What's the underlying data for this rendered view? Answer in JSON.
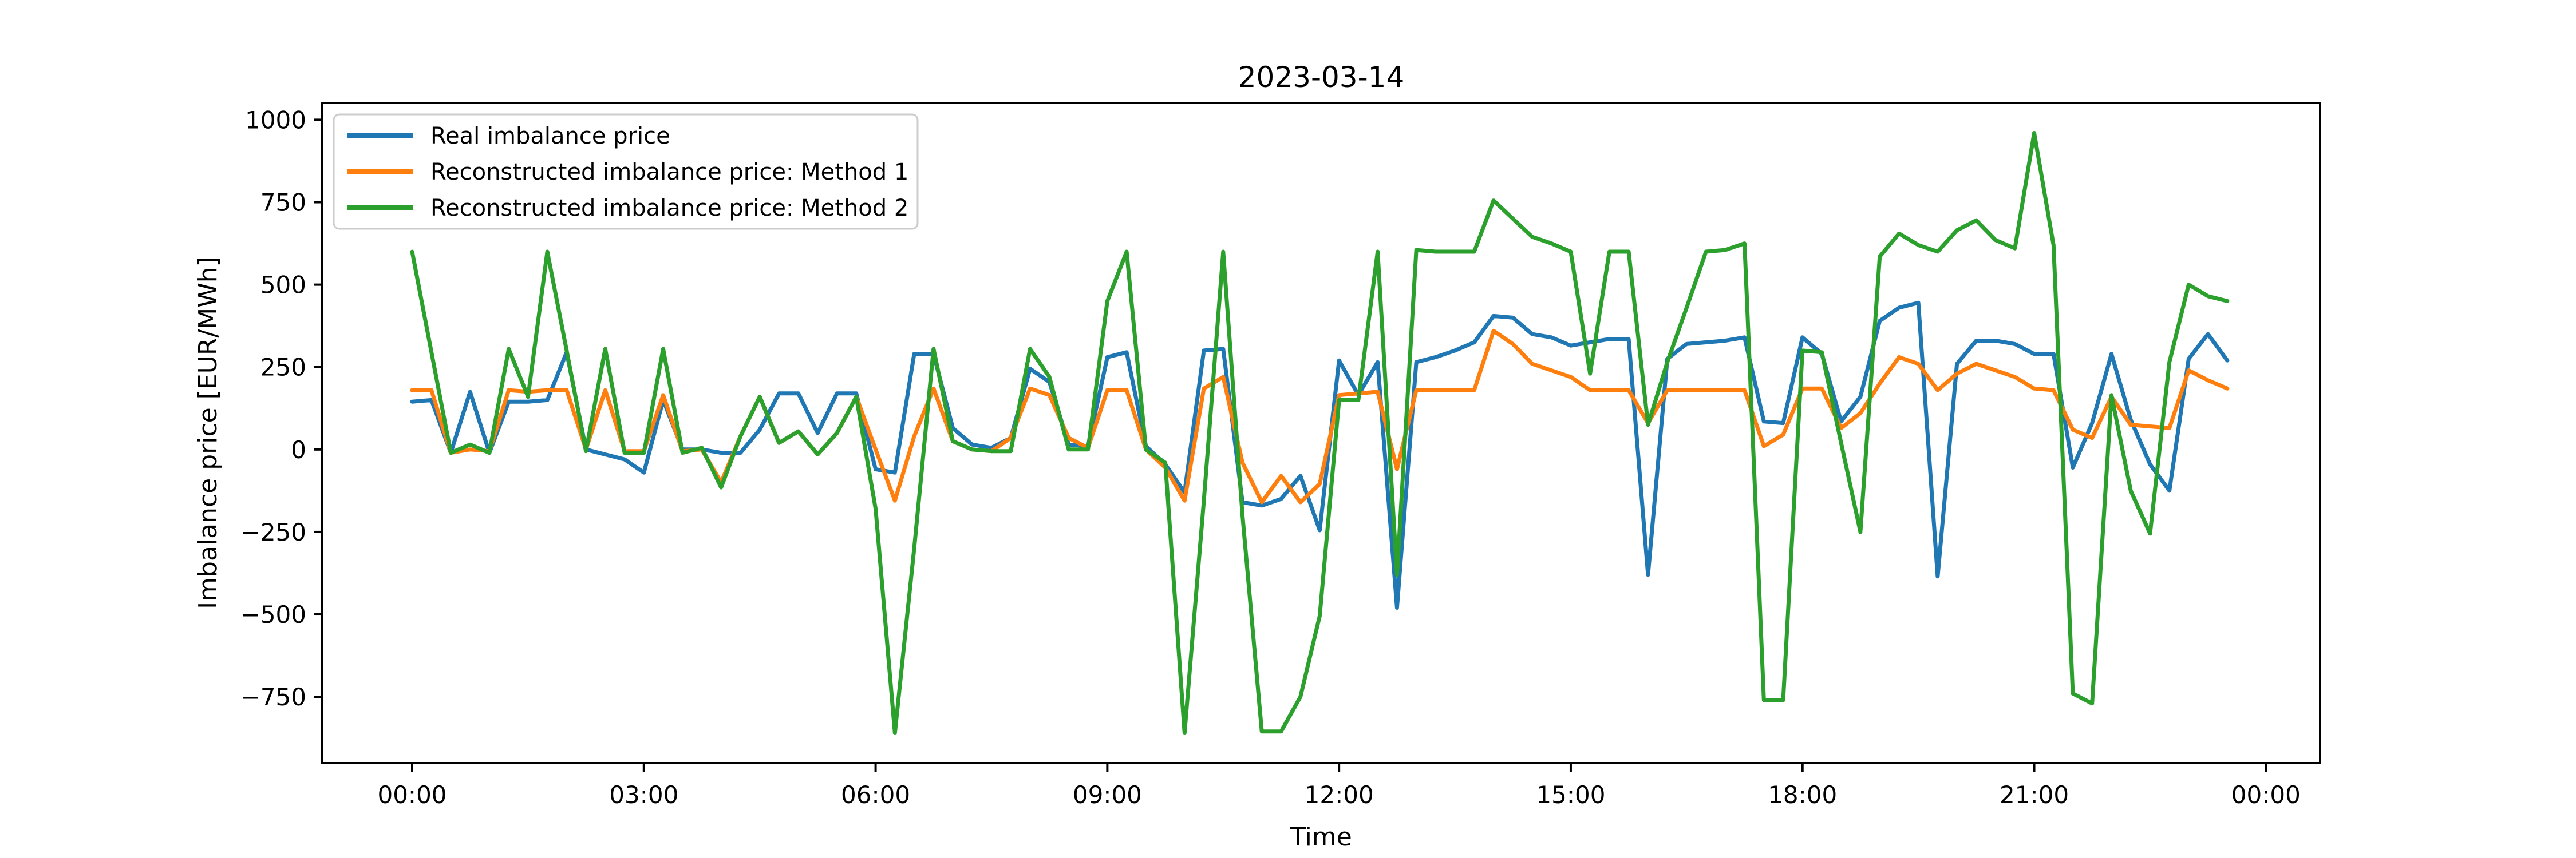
{
  "chart_data": {
    "type": "line",
    "title": "2023-03-14",
    "xlabel": "Time",
    "ylabel": "Imbalance price [EUR/MWh]",
    "x_start": "00:00",
    "x_step_minutes": 15,
    "n_points": 95,
    "x_tick_hours": [
      0,
      3,
      6,
      9,
      12,
      15,
      18,
      21,
      24
    ],
    "x_tick_labels": [
      "00:00",
      "03:00",
      "06:00",
      "09:00",
      "12:00",
      "15:00",
      "18:00",
      "21:00",
      "00:00"
    ],
    "y_ticks": [
      1000,
      750,
      500,
      250,
      0,
      -250,
      -500,
      -750
    ],
    "y_tick_labels": [
      "1000",
      "750",
      "500",
      "250",
      "0",
      "−250",
      "−500",
      "−750"
    ],
    "ylim": [
      -951,
      1051
    ],
    "xlim_hours": [
      -1.17,
      24.7
    ],
    "grid": false,
    "legend_position": "upper left",
    "series": [
      {
        "name": "Real imbalance price",
        "color": "#1f77b4",
        "values": [
          145,
          150,
          -10,
          175,
          -10,
          145,
          145,
          150,
          295,
          0,
          -15,
          -30,
          -70,
          150,
          0,
          0,
          -10,
          -10,
          60,
          170,
          170,
          50,
          170,
          170,
          -60,
          -70,
          290,
          290,
          65,
          15,
          5,
          35,
          245,
          205,
          15,
          10,
          280,
          295,
          10,
          -45,
          -130,
          300,
          305,
          -160,
          -170,
          -150,
          -80,
          -245,
          270,
          165,
          265,
          -480,
          265,
          280,
          300,
          325,
          405,
          400,
          350,
          340,
          315,
          325,
          335,
          335,
          -380,
          275,
          320,
          325,
          330,
          340,
          85,
          80,
          340,
          290,
          85,
          160,
          390,
          430,
          445,
          -385,
          260,
          330,
          330,
          320,
          290,
          290,
          -55,
          80,
          290,
          90,
          -45,
          -125,
          275,
          350,
          270
        ]
      },
      {
        "name": "Reconstructed imbalance price: Method 1",
        "color": "#ff7f0e",
        "values": [
          180,
          180,
          -10,
          0,
          -5,
          180,
          175,
          180,
          180,
          0,
          180,
          -5,
          -5,
          165,
          -5,
          0,
          -100,
          40,
          160,
          20,
          55,
          -15,
          50,
          160,
          0,
          -155,
          40,
          185,
          25,
          0,
          -5,
          35,
          185,
          165,
          35,
          5,
          180,
          180,
          0,
          -55,
          -155,
          185,
          220,
          -40,
          -160,
          -80,
          -160,
          -105,
          165,
          170,
          175,
          -60,
          180,
          180,
          180,
          180,
          360,
          320,
          260,
          240,
          220,
          180,
          180,
          180,
          80,
          180,
          180,
          180,
          180,
          180,
          10,
          45,
          185,
          185,
          65,
          110,
          200,
          280,
          260,
          180,
          230,
          260,
          240,
          220,
          185,
          180,
          60,
          35,
          160,
          75,
          70,
          65,
          240,
          210,
          185
        ]
      },
      {
        "name": "Reconstructed imbalance price: Method 2",
        "color": "#2ca02c",
        "values": [
          600,
          295,
          -10,
          15,
          -10,
          305,
          160,
          600,
          300,
          -5,
          305,
          -10,
          -10,
          305,
          -10,
          5,
          -115,
          40,
          160,
          20,
          55,
          -15,
          50,
          160,
          -180,
          -860,
          -300,
          305,
          25,
          0,
          -5,
          -5,
          305,
          220,
          0,
          0,
          450,
          600,
          0,
          -40,
          -860,
          -155,
          600,
          -200,
          -855,
          -855,
          -750,
          -505,
          150,
          150,
          600,
          -380,
          605,
          600,
          600,
          600,
          755,
          700,
          645,
          625,
          600,
          230,
          600,
          600,
          75,
          265,
          430,
          600,
          605,
          625,
          -760,
          -760,
          300,
          295,
          20,
          -250,
          585,
          655,
          620,
          600,
          665,
          695,
          635,
          610,
          960,
          620,
          -740,
          -770,
          165,
          -125,
          -255,
          265,
          500,
          465,
          450
        ]
      }
    ]
  }
}
